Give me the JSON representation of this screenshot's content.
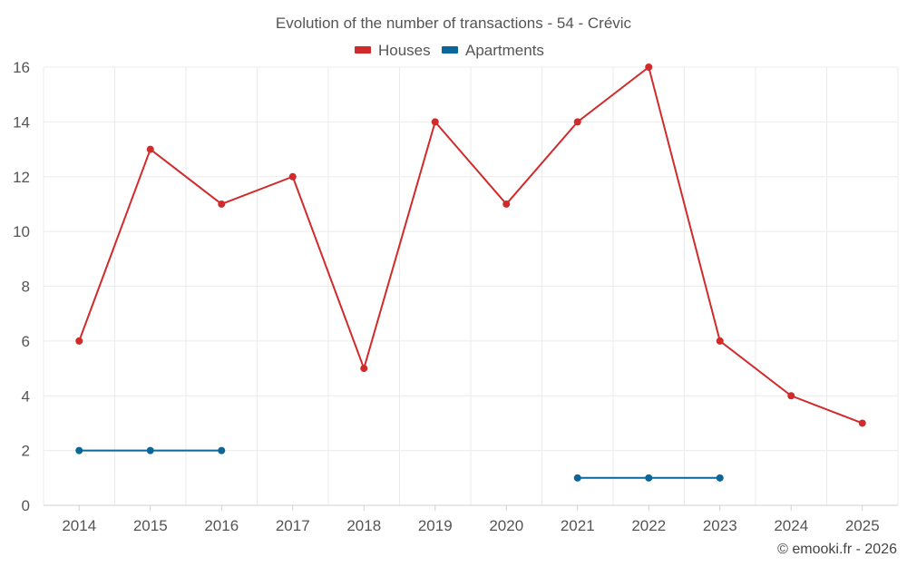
{
  "chart_data": {
    "type": "line",
    "title": "Evolution of the number of transactions - 54 - Crévic",
    "xlabel": "",
    "ylabel": "",
    "categories": [
      "2014",
      "2015",
      "2016",
      "2017",
      "2018",
      "2019",
      "2020",
      "2021",
      "2022",
      "2023",
      "2024",
      "2025"
    ],
    "ylim": [
      0,
      16
    ],
    "yticks": [
      0,
      2,
      4,
      6,
      8,
      10,
      12,
      14,
      16
    ],
    "grid": true,
    "legend_position": "top-center",
    "series": [
      {
        "name": "Houses",
        "color": "#d12a2a",
        "values": [
          6,
          13,
          11,
          12,
          5,
          14,
          11,
          14,
          16,
          6,
          4,
          3
        ]
      },
      {
        "name": "Apartments",
        "color": "#0b6699",
        "values": [
          2,
          2,
          2,
          null,
          null,
          null,
          null,
          1,
          1,
          1,
          null,
          null
        ]
      }
    ]
  },
  "credit": "© emooki.fr - 2026"
}
